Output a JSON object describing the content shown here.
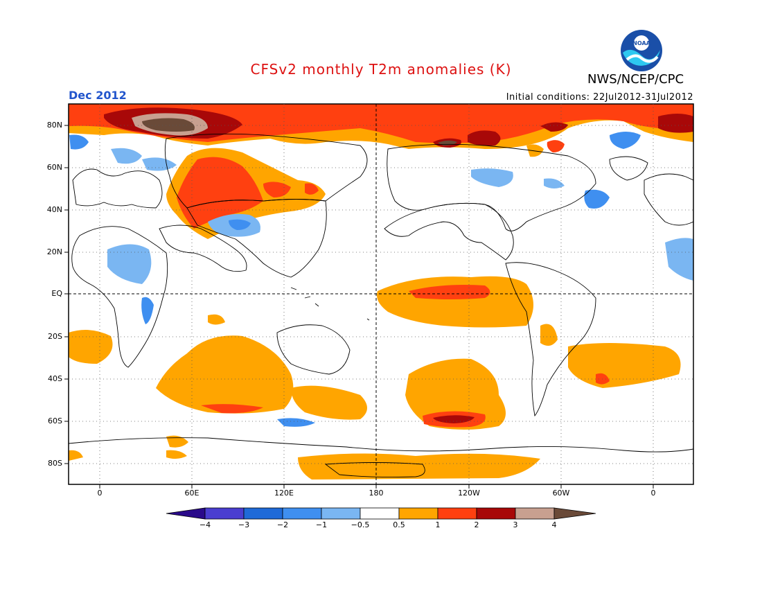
{
  "header": {
    "title": "CFSv2 monthly T2m anomalies (K)",
    "agency": "NWS/NCEP/CPC",
    "logo_text": "NOAA",
    "month": "Dec 2012",
    "initial_conditions": "Initial conditions: 22Jul2012-31Jul2012"
  },
  "colors": {
    "title": "#dd1111",
    "month": "#2255cc",
    "anomaly_levels": [
      "#2a0a8a",
      "#4a3ed0",
      "#1f6ad8",
      "#3f8ff0",
      "#7ab6f2",
      "#ffffff",
      "#ffa500",
      "#ff4010",
      "#a80808",
      "#c8a090",
      "#6a4a38"
    ]
  },
  "axes": {
    "lat_labels": [
      "80N",
      "60N",
      "40N",
      "20N",
      "EQ",
      "20S",
      "40S",
      "60S",
      "80S"
    ],
    "lon_labels": [
      "0",
      "60E",
      "120E",
      "180",
      "120W",
      "60W",
      "0"
    ]
  },
  "colorbar": {
    "labels": [
      "−4",
      "−3",
      "−2",
      "−1",
      "−0.5",
      "0.5",
      "1",
      "2",
      "3",
      "4"
    ]
  }
}
